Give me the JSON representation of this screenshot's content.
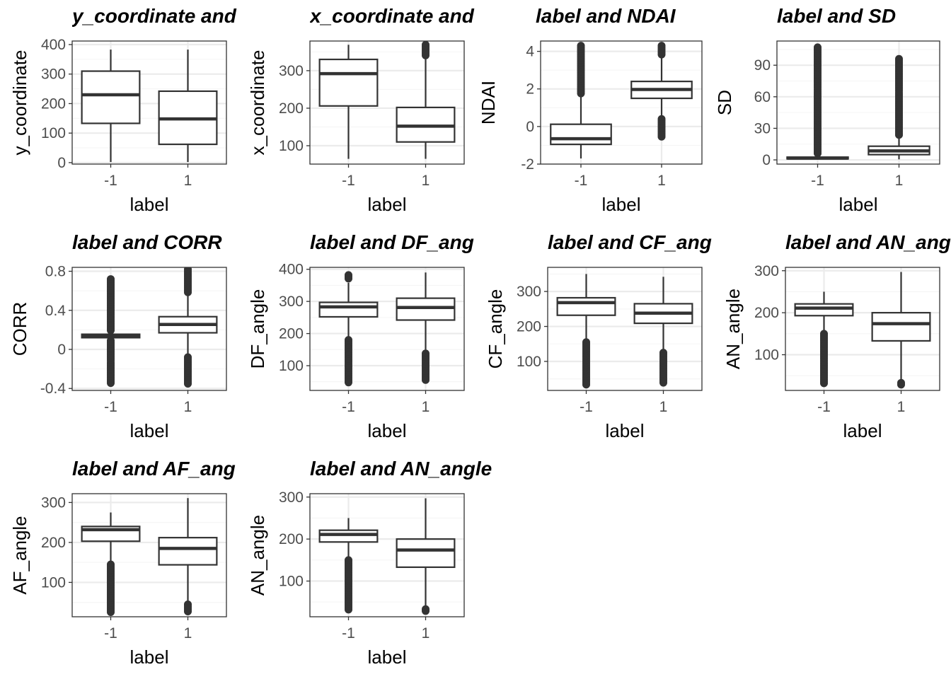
{
  "figure": {
    "colors": {
      "background": "#ffffff",
      "panel_border": "#333333",
      "grid_major": "#ebebeb",
      "grid_minor": "#f5f5f5",
      "box_line": "#333333",
      "outlier": "#333333",
      "tick_text": "#4d4d4d"
    }
  },
  "chart_data": [
    {
      "type": "box",
      "title": "y_coordinate and",
      "xlabel": "label",
      "ylabel": "y_coordinate",
      "categories": [
        "-1",
        "1"
      ],
      "ylim": [
        -5,
        412
      ],
      "yticks": [
        0,
        100,
        200,
        300,
        400
      ],
      "grid": true,
      "legend": "none",
      "boxes": [
        {
          "q1": 133,
          "median": 230,
          "q3": 310,
          "whisker_low": 2,
          "whisker_high": 383,
          "outlier_ranges": []
        },
        {
          "q1": 62,
          "median": 148,
          "q3": 242,
          "whisker_low": 2,
          "whisker_high": 383,
          "outlier_ranges": []
        }
      ]
    },
    {
      "type": "box",
      "title": "x_coordinate and",
      "xlabel": "label",
      "ylabel": "x_coordinate",
      "categories": [
        "-1",
        "1"
      ],
      "ylim": [
        51,
        379
      ],
      "yticks": [
        100,
        200,
        300
      ],
      "grid": true,
      "legend": "none",
      "boxes": [
        {
          "q1": 206,
          "median": 292,
          "q3": 330,
          "whisker_low": 65,
          "whisker_high": 369,
          "outlier_ranges": []
        },
        {
          "q1": 110,
          "median": 152,
          "q3": 202,
          "whisker_low": 65,
          "whisker_high": 336,
          "outlier_ranges": [
            [
              338,
              369
            ]
          ]
        }
      ]
    },
    {
      "type": "box",
      "title": "label and NDAI",
      "xlabel": "label",
      "ylabel": "NDAI",
      "categories": [
        "-1",
        "1"
      ],
      "ylim": [
        -2.0,
        4.55
      ],
      "yticks": [
        -2,
        0,
        2,
        4
      ],
      "grid": true,
      "legend": "none",
      "boxes": [
        {
          "q1": -0.95,
          "median": -0.65,
          "q3": 0.12,
          "whisker_low": -1.7,
          "whisker_high": 1.7,
          "outlier_ranges": [
            [
              1.75,
              4.3
            ]
          ]
        },
        {
          "q1": 1.5,
          "median": 1.97,
          "q3": 2.4,
          "whisker_low": 0.45,
          "whisker_high": 3.7,
          "outlier_ranges": [
            [
              -0.6,
              0.4
            ],
            [
              3.75,
              4.3
            ]
          ]
        }
      ]
    },
    {
      "type": "box",
      "title": "label and SD",
      "xlabel": "label",
      "ylabel": "SD",
      "categories": [
        "-1",
        "1"
      ],
      "ylim": [
        -4,
        113
      ],
      "yticks": [
        0,
        30,
        60,
        90
      ],
      "grid": true,
      "legend": "none",
      "boxes": [
        {
          "q1": 1.0,
          "median": 1.6,
          "q3": 2.6,
          "whisker_low": 0.2,
          "whisker_high": 4.5,
          "outlier_ranges": [
            [
              4.8,
              107
            ]
          ]
        },
        {
          "q1": 5,
          "median": 8.5,
          "q3": 13,
          "whisker_low": 0.5,
          "whisker_high": 22,
          "outlier_ranges": [
            [
              23,
              96
            ]
          ]
        }
      ]
    },
    {
      "type": "box",
      "title": "label and CORR",
      "xlabel": "label",
      "ylabel": "CORR",
      "categories": [
        "-1",
        "1"
      ],
      "ylim": [
        -0.42,
        0.84
      ],
      "yticks": [
        -0.4,
        0.0,
        0.4,
        0.8
      ],
      "grid": true,
      "legend": "none",
      "boxes": [
        {
          "q1": 0.12,
          "median": 0.14,
          "q3": 0.155,
          "whisker_low": 0.105,
          "whisker_high": 0.17,
          "outlier_ranges": [
            [
              -0.36,
              0.09
            ],
            [
              0.19,
              0.72
            ]
          ]
        },
        {
          "q1": 0.17,
          "median": 0.255,
          "q3": 0.335,
          "whisker_low": -0.06,
          "whisker_high": 0.57,
          "outlier_ranges": [
            [
              -0.36,
              -0.08
            ],
            [
              0.58,
              0.82
            ]
          ]
        }
      ]
    },
    {
      "type": "box",
      "title": "label and DF_ang",
      "xlabel": "label",
      "ylabel": "DF_angle",
      "categories": [
        "-1",
        "1"
      ],
      "ylim": [
        23,
        406
      ],
      "yticks": [
        100,
        200,
        300,
        400
      ],
      "grid": true,
      "legend": "none",
      "boxes": [
        {
          "q1": 252,
          "median": 283,
          "q3": 297,
          "whisker_low": 185,
          "whisker_high": 358,
          "outlier_ranges": [
            [
              45,
              180
            ],
            [
              370,
              382
            ]
          ]
        },
        {
          "q1": 242,
          "median": 281,
          "q3": 310,
          "whisker_low": 140,
          "whisker_high": 390,
          "outlier_ranges": [
            [
              55,
              138
            ]
          ]
        }
      ]
    },
    {
      "type": "box",
      "title": "label and CF_ang",
      "xlabel": "label",
      "ylabel": "CF_angle",
      "categories": [
        "-1",
        "1"
      ],
      "ylim": [
        17,
        369
      ],
      "yticks": [
        100,
        200,
        300
      ],
      "grid": true,
      "legend": "none",
      "boxes": [
        {
          "q1": 232,
          "median": 268,
          "q3": 282,
          "whisker_low": 160,
          "whisker_high": 350,
          "outlier_ranges": [
            [
              30,
              155
            ]
          ]
        },
        {
          "q1": 209,
          "median": 238,
          "q3": 265,
          "whisker_low": 128,
          "whisker_high": 342,
          "outlier_ranges": [
            [
              38,
              125
            ]
          ]
        }
      ]
    },
    {
      "type": "box",
      "title": "label and AN_ang",
      "xlabel": "label",
      "ylabel": "AN_angle",
      "categories": [
        "-1",
        "1"
      ],
      "ylim": [
        15,
        308
      ],
      "yticks": [
        100,
        200,
        300
      ],
      "grid": true,
      "legend": "none",
      "boxes": [
        {
          "q1": 193,
          "median": 211,
          "q3": 221,
          "whisker_low": 152,
          "whisker_high": 250,
          "outlier_ranges": [
            [
              28,
              150
            ]
          ]
        },
        {
          "q1": 133,
          "median": 174,
          "q3": 200,
          "whisker_low": 35,
          "whisker_high": 297,
          "outlier_ranges": [
            [
              25,
              33
            ]
          ]
        }
      ]
    },
    {
      "type": "box",
      "title": "label and AF_ang",
      "xlabel": "label",
      "ylabel": "AF_angle",
      "categories": [
        "-1",
        "1"
      ],
      "ylim": [
        14,
        322
      ],
      "yticks": [
        100,
        200,
        300
      ],
      "grid": true,
      "legend": "none",
      "boxes": [
        {
          "q1": 203,
          "median": 232,
          "q3": 240,
          "whisker_low": 150,
          "whisker_high": 275,
          "outlier_ranges": [
            [
              22,
              145
            ]
          ]
        },
        {
          "q1": 144,
          "median": 185,
          "q3": 212,
          "whisker_low": 48,
          "whisker_high": 311,
          "outlier_ranges": [
            [
              25,
              45
            ]
          ]
        }
      ]
    },
    {
      "type": "box",
      "title": "label and AN_angle",
      "xlabel": "label",
      "ylabel": "AN_angle",
      "categories": [
        "-1",
        "1"
      ],
      "ylim": [
        15,
        308
      ],
      "yticks": [
        100,
        200,
        300
      ],
      "grid": true,
      "legend": "none",
      "boxes": [
        {
          "q1": 193,
          "median": 211,
          "q3": 221,
          "whisker_low": 152,
          "whisker_high": 250,
          "outlier_ranges": [
            [
              28,
              150
            ]
          ]
        },
        {
          "q1": 133,
          "median": 174,
          "q3": 200,
          "whisker_low": 35,
          "whisker_high": 297,
          "outlier_ranges": [
            [
              25,
              33
            ]
          ]
        }
      ]
    }
  ]
}
